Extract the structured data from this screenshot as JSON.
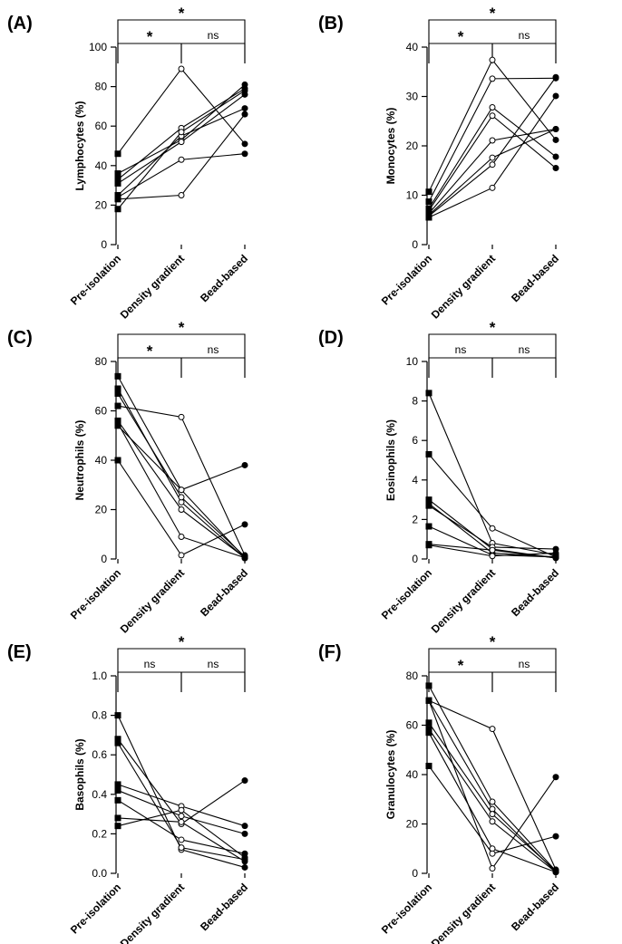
{
  "chart_data": [
    {
      "panel_label": "(A)",
      "type": "line",
      "ylabel": "Lymphocytes (%)",
      "categories": [
        "Pre-isolation",
        "Density gradient",
        "Bead-based"
      ],
      "ylim": [
        0,
        100
      ],
      "yticks": [
        0,
        20,
        40,
        60,
        80,
        100
      ],
      "grid": false,
      "series": [
        {
          "values": [
            46,
            89,
            51
          ]
        },
        {
          "values": [
            36,
            53,
            81
          ]
        },
        {
          "values": [
            33,
            59,
            79
          ]
        },
        {
          "values": [
            31,
            52,
            76
          ]
        },
        {
          "values": [
            25,
            55,
            69
          ]
        },
        {
          "values": [
            23,
            25,
            66
          ]
        },
        {
          "values": [
            24,
            43,
            46
          ]
        },
        {
          "values": [
            18,
            57,
            78
          ]
        }
      ],
      "significance": [
        {
          "from": 0,
          "to": 2,
          "label": "*",
          "level": 0
        },
        {
          "from": 0,
          "to": 1,
          "label": "*",
          "level": 1
        },
        {
          "from": 1,
          "to": 2,
          "label": "ns",
          "level": 1
        }
      ]
    },
    {
      "panel_label": "(B)",
      "type": "line",
      "ylabel": "Monocytes (%)",
      "categories": [
        "Pre-isolation",
        "Density gradient",
        "Bead-based"
      ],
      "ylim": [
        0,
        40
      ],
      "yticks": [
        0,
        10,
        20,
        30,
        40
      ],
      "grid": false,
      "series": [
        {
          "values": [
            10.7,
            37.4,
            21.2
          ]
        },
        {
          "values": [
            8.7,
            33.6,
            33.7
          ]
        },
        {
          "values": [
            7.3,
            27.8,
            17.8
          ]
        },
        {
          "values": [
            6.9,
            26.1,
            15.5
          ]
        },
        {
          "values": [
            6.3,
            21.1,
            23.4
          ]
        },
        {
          "values": [
            6.0,
            17.6,
            23.4
          ]
        },
        {
          "values": [
            5.8,
            16.2,
            33.9
          ]
        },
        {
          "values": [
            5.5,
            11.5,
            30.1
          ]
        }
      ],
      "significance": [
        {
          "from": 0,
          "to": 2,
          "label": "*",
          "level": 0
        },
        {
          "from": 0,
          "to": 1,
          "label": "*",
          "level": 1
        },
        {
          "from": 1,
          "to": 2,
          "label": "ns",
          "level": 1
        }
      ]
    },
    {
      "panel_label": "(C)",
      "type": "line",
      "ylabel": "Neutrophils  (%)",
      "categories": [
        "Pre-isolation",
        "Density gradient",
        "Bead-based"
      ],
      "ylim": [
        0,
        80
      ],
      "yticks": [
        0,
        20,
        40,
        60,
        80
      ],
      "grid": false,
      "series": [
        {
          "values": [
            74,
            28,
            0.5
          ]
        },
        {
          "values": [
            69,
            23,
            0.3
          ]
        },
        {
          "values": [
            67,
            25,
            1.0
          ]
        },
        {
          "values": [
            62,
            57.5,
            1.5
          ]
        },
        {
          "values": [
            56,
            20,
            0.5
          ]
        },
        {
          "values": [
            55,
            9,
            0.5
          ]
        },
        {
          "values": [
            54,
            28,
            38
          ]
        },
        {
          "values": [
            40,
            1.5,
            14
          ]
        }
      ],
      "significance": [
        {
          "from": 0,
          "to": 2,
          "label": "*",
          "level": 0
        },
        {
          "from": 0,
          "to": 1,
          "label": "*",
          "level": 1
        },
        {
          "from": 1,
          "to": 2,
          "label": "ns",
          "level": 1
        }
      ]
    },
    {
      "panel_label": "(D)",
      "type": "line",
      "ylabel": "Eosinophils  (%)",
      "categories": [
        "Pre-isolation",
        "Density gradient",
        "Bead-based"
      ],
      "ylim": [
        0,
        10
      ],
      "yticks": [
        0,
        2,
        4,
        6,
        8,
        10
      ],
      "grid": false,
      "series": [
        {
          "values": [
            8.4,
            0.8,
            0.2
          ]
        },
        {
          "values": [
            5.3,
            1.55,
            0.1
          ]
        },
        {
          "values": [
            3.0,
            0.5,
            0.05
          ]
        },
        {
          "values": [
            2.8,
            0.3,
            0.1
          ]
        },
        {
          "values": [
            2.7,
            0.6,
            0.5
          ]
        },
        {
          "values": [
            1.65,
            0.2,
            0.1
          ]
        },
        {
          "values": [
            0.75,
            0.45,
            0.05
          ]
        },
        {
          "values": [
            0.7,
            0.15,
            0.3
          ]
        }
      ],
      "significance": [
        {
          "from": 0,
          "to": 2,
          "label": "*",
          "level": 0
        },
        {
          "from": 0,
          "to": 1,
          "label": "ns",
          "level": 1
        },
        {
          "from": 1,
          "to": 2,
          "label": "ns",
          "level": 1
        }
      ]
    },
    {
      "panel_label": "(E)",
      "type": "line",
      "ylabel": "Basophils  (%)",
      "categories": [
        "Pre-isolation",
        "Density gradient",
        "Bead-based"
      ],
      "ylim": [
        0,
        1.0
      ],
      "yticks": [
        0.0,
        0.2,
        0.4,
        0.6,
        0.8,
        1.0
      ],
      "ytick_labels": [
        "0.0",
        "0.2",
        "0.4",
        "0.6",
        "0.8",
        "1.0"
      ],
      "grid": false,
      "series": [
        {
          "values": [
            0.8,
            0.12,
            0.03
          ]
        },
        {
          "values": [
            0.68,
            0.25,
            0.47
          ]
        },
        {
          "values": [
            0.66,
            0.13,
            0.07
          ]
        },
        {
          "values": [
            0.45,
            0.34,
            0.24
          ]
        },
        {
          "values": [
            0.42,
            0.29,
            0.2
          ]
        },
        {
          "values": [
            0.37,
            0.17,
            0.1
          ]
        },
        {
          "values": [
            0.28,
            0.26,
            0.06
          ]
        },
        {
          "values": [
            0.24,
            0.32,
            0.08
          ]
        }
      ],
      "significance": [
        {
          "from": 0,
          "to": 2,
          "label": "*",
          "level": 0
        },
        {
          "from": 0,
          "to": 1,
          "label": "ns",
          "level": 1
        },
        {
          "from": 1,
          "to": 2,
          "label": "ns",
          "level": 1
        }
      ]
    },
    {
      "panel_label": "(F)",
      "type": "line",
      "ylabel": "Granulocytes  (%)",
      "categories": [
        "Pre-isolation",
        "Density gradient",
        "Bead-based"
      ],
      "ylim": [
        0,
        80
      ],
      "yticks": [
        0,
        20,
        40,
        60,
        80
      ],
      "grid": false,
      "series": [
        {
          "values": [
            76,
            29,
            1
          ]
        },
        {
          "values": [
            70,
            58.5,
            1.5
          ]
        },
        {
          "values": [
            70,
            26,
            0.5
          ]
        },
        {
          "values": [
            61,
            24,
            1
          ]
        },
        {
          "values": [
            58.5,
            21,
            0.5
          ]
        },
        {
          "values": [
            57,
            10,
            0.5
          ]
        },
        {
          "values": [
            43.5,
            8,
            15
          ]
        },
        {
          "values": [
            70,
            2,
            39
          ]
        }
      ],
      "significance": [
        {
          "from": 0,
          "to": 2,
          "label": "*",
          "level": 0
        },
        {
          "from": 0,
          "to": 1,
          "label": "*",
          "level": 1
        },
        {
          "from": 1,
          "to": 2,
          "label": "ns",
          "level": 1
        }
      ]
    }
  ]
}
